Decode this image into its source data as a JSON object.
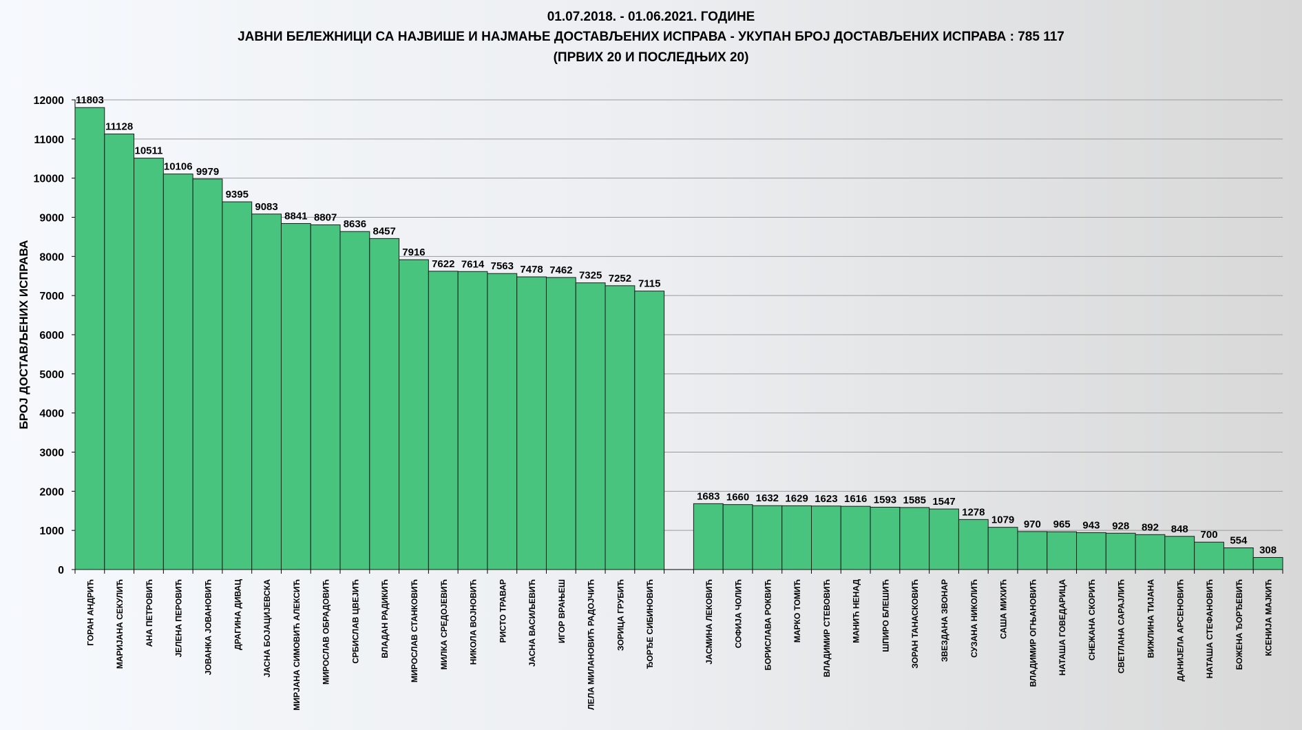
{
  "header": {
    "line1": "01.07.2018.  - 01.06.2021.  ГОДИНЕ",
    "line2": "ЈАВНИ БЕЛЕЖНИЦИ СА НАЈВИШЕ И НАЈМАЊЕ ДОСТАВЉЕНИХ ИСПРАВА - УКУПАН БРОЈ ДОСТАВЉЕНИХ ИСПРАВА :    785 117",
    "line3": "(ПРВИХ 20 И ПОСЛЕДЊИХ 20)"
  },
  "colors": {
    "bar": "#48c47f",
    "bar_stroke": "#1a1a1a",
    "grid": "#9a9a9a"
  },
  "chart_data": {
    "type": "bar",
    "title": "ЈАВНИ БЕЛЕЖНИЦИ СА НАЈВИШЕ И НАЈМАЊЕ ДОСТАВЉЕНИХ ИСПРАВА",
    "xlabel": "",
    "ylabel": "БРОЈ ДОСТАВЉЕНИХ ИСПРАВА",
    "ylim": [
      0,
      12000
    ],
    "yticks": [
      0,
      1000,
      2000,
      3000,
      4000,
      5000,
      6000,
      7000,
      8000,
      9000,
      10000,
      11000,
      12000
    ],
    "grid": true,
    "groups": [
      {
        "name": "ПРВИХ 20",
        "categories": [
          "ГОРАН АНДРИЋ",
          "МАРИЈАНА СЕКУЛИЋ",
          "АНА ПЕТРОВИЋ",
          "ЈЕЛЕНА ПЕРОВИЋ",
          "ЈОВАНКА ЈОВАНОВИЋ",
          "ДРАГИНА ДИВАЦ",
          "ЈАСНА БОЈАЦИЈЕВСКА",
          "МИРЈАНА СИМОВИЋ АЛЕКСИЋ",
          "МИРОСЛАВ ОБРАДОВИЋ",
          "СРБИСЛАВ ЦВЕЈИЋ",
          "ВЛАДАН РАДИКИЋ",
          "МИРОСЛАВ СТАНКОВИЋ",
          "МИЛКА СРЕДОЈЕВИЋ",
          "НИКОЛА ВОЈНОВИЋ",
          "РИСТО ТРАВАР",
          "ЈАСНА ВАСИЉЕВИЋ",
          "ИГОР ВРАЊЕШ",
          "ЛЕЛА МИЛАНОВИЋ РАДОЈЧИЋ",
          "ЗОРИЦА ГРУБИЋ",
          "ЂОРЂЕ СИБИНОВИЋ"
        ],
        "values": [
          11803,
          11128,
          10511,
          10106,
          9979,
          9395,
          9083,
          8841,
          8807,
          8636,
          8457,
          7916,
          7622,
          7614,
          7563,
          7478,
          7462,
          7325,
          7252,
          7115
        ]
      },
      {
        "name": "ПОСЛЕДЊИХ 20",
        "categories": [
          "ЈАСМИНА ЛЕКОВИЋ",
          "СОФИЈА ЧОЛИЋ",
          "БОРИСЛАВА РОКВИЋ",
          "МАРКО ТОМИЋ",
          "ВЛАДИМИР СТЕВОВИЋ",
          "МАНИЋ НЕНАД",
          "ШПИРО БЛЕШИЋ",
          "ЗОРАН ТАНАСКОВИЋ",
          "ЗВЕЗДАНА ЗВОНАР",
          "СУЗАНА НИКОЛИЋ",
          "САША МИХИЋ",
          "ВЛАДИМИР ОГЊАНОВИЋ",
          "НАТАША ГОВЕДАРИЦА",
          "СНЕЖАНА СКОРИЋ",
          "СВЕТЛАНА САРАЈЛИЋ",
          "ВИЖЛИНА ТИЈАНА",
          "ДАНИЈЕЛА АРСЕНОВИЋ",
          "НАТАША СТЕФАНОВИЋ",
          "БОЖЕНА ЂОРЂЕВИЋ",
          "КСЕНИЈА МАЈКИЋ"
        ],
        "values": [
          1683,
          1660,
          1632,
          1629,
          1623,
          1616,
          1593,
          1585,
          1547,
          1278,
          1079,
          970,
          965,
          943,
          928,
          892,
          848,
          700,
          554,
          308
        ]
      }
    ]
  }
}
